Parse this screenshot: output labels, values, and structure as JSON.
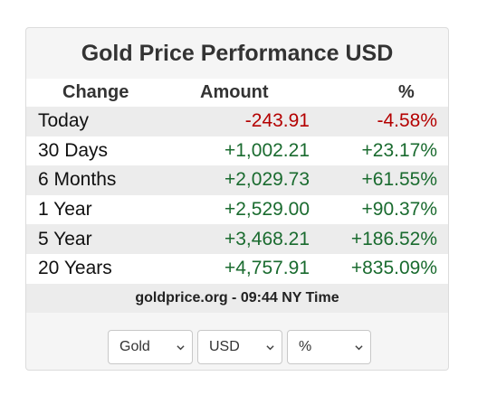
{
  "widget": {
    "title": "Gold Price Performance USD",
    "headers": {
      "change": "Change",
      "amount": "Amount",
      "percent": "%"
    },
    "rows": [
      {
        "period": "Today",
        "amount": "-243.91",
        "percent": "-4.58%",
        "direction": "negative"
      },
      {
        "period": "30 Days",
        "amount": "+1,002.21",
        "percent": "+23.17%",
        "direction": "positive"
      },
      {
        "period": "6 Months",
        "amount": "+2,029.73",
        "percent": "+61.55%",
        "direction": "positive"
      },
      {
        "period": "1 Year",
        "amount": "+2,529.00",
        "percent": "+90.37%",
        "direction": "positive"
      },
      {
        "period": "5 Year",
        "amount": "+3,468.21",
        "percent": "+186.52%",
        "direction": "positive"
      },
      {
        "period": "20 Years",
        "amount": "+4,757.91",
        "percent": "+835.09%",
        "direction": "positive"
      }
    ],
    "source": "goldprice.org - 09:44 NY Time"
  },
  "controls": {
    "metal_select": {
      "value": "Gold",
      "icon": "chevron-down-icon"
    },
    "currency_select": {
      "value": "USD",
      "icon": "chevron-down-icon"
    },
    "unit_select": {
      "value": "%",
      "icon": "chevron-down-icon"
    }
  },
  "colors": {
    "negative": "#b40000",
    "positive": "#1a6b2f",
    "row_stripe": "#ececec",
    "panel_background": "#f5f5f5"
  }
}
